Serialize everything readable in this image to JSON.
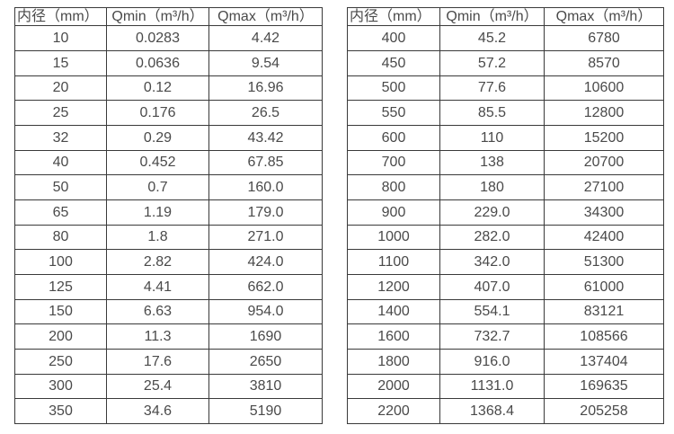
{
  "colors": {
    "background": "#ffffff",
    "table_border": "#3a3a3a",
    "text": "#4a4a4a"
  },
  "tables": [
    {
      "name": "flow-rate-table-left",
      "headers": [
        "内径（mm）",
        "Qmin（m³/h）",
        "Qmax（m³/h）"
      ],
      "rows": [
        [
          "10",
          "0.0283",
          "4.42"
        ],
        [
          "15",
          "0.0636",
          "9.54"
        ],
        [
          "20",
          "0.12",
          "16.96"
        ],
        [
          "25",
          "0.176",
          "26.5"
        ],
        [
          "32",
          "0.29",
          "43.42"
        ],
        [
          "40",
          "0.452",
          "67.85"
        ],
        [
          "50",
          "0.7",
          "160.0"
        ],
        [
          "65",
          "1.19",
          "179.0"
        ],
        [
          "80",
          "1.8",
          "271.0"
        ],
        [
          "100",
          "2.82",
          "424.0"
        ],
        [
          "125",
          "4.41",
          "662.0"
        ],
        [
          "150",
          "6.63",
          "954.0"
        ],
        [
          "200",
          "11.3",
          "1690"
        ],
        [
          "250",
          "17.6",
          "2650"
        ],
        [
          "300",
          "25.4",
          "3810"
        ],
        [
          "350",
          "34.6",
          "5190"
        ]
      ]
    },
    {
      "name": "flow-rate-table-right",
      "headers": [
        "内径（mm）",
        "Qmin（m³/h）",
        "Qmax（m³/h）"
      ],
      "rows": [
        [
          "400",
          "45.2",
          "6780"
        ],
        [
          "450",
          "57.2",
          "8570"
        ],
        [
          "500",
          "77.6",
          "10600"
        ],
        [
          "550",
          "85.5",
          "12800"
        ],
        [
          "600",
          "110",
          "15200"
        ],
        [
          "700",
          "138",
          "20700"
        ],
        [
          "800",
          "180",
          "27100"
        ],
        [
          "900",
          "229.0",
          "34300"
        ],
        [
          "1000",
          "282.0",
          "42400"
        ],
        [
          "1100",
          "342.0",
          "51300"
        ],
        [
          "1200",
          "407.0",
          "61000"
        ],
        [
          "1400",
          "554.1",
          "83121"
        ],
        [
          "1600",
          "732.7",
          "108566"
        ],
        [
          "1800",
          "916.0",
          "137404"
        ],
        [
          "2000",
          "1131.0",
          "169635"
        ],
        [
          "2200",
          "1368.4",
          "205258"
        ]
      ]
    }
  ]
}
